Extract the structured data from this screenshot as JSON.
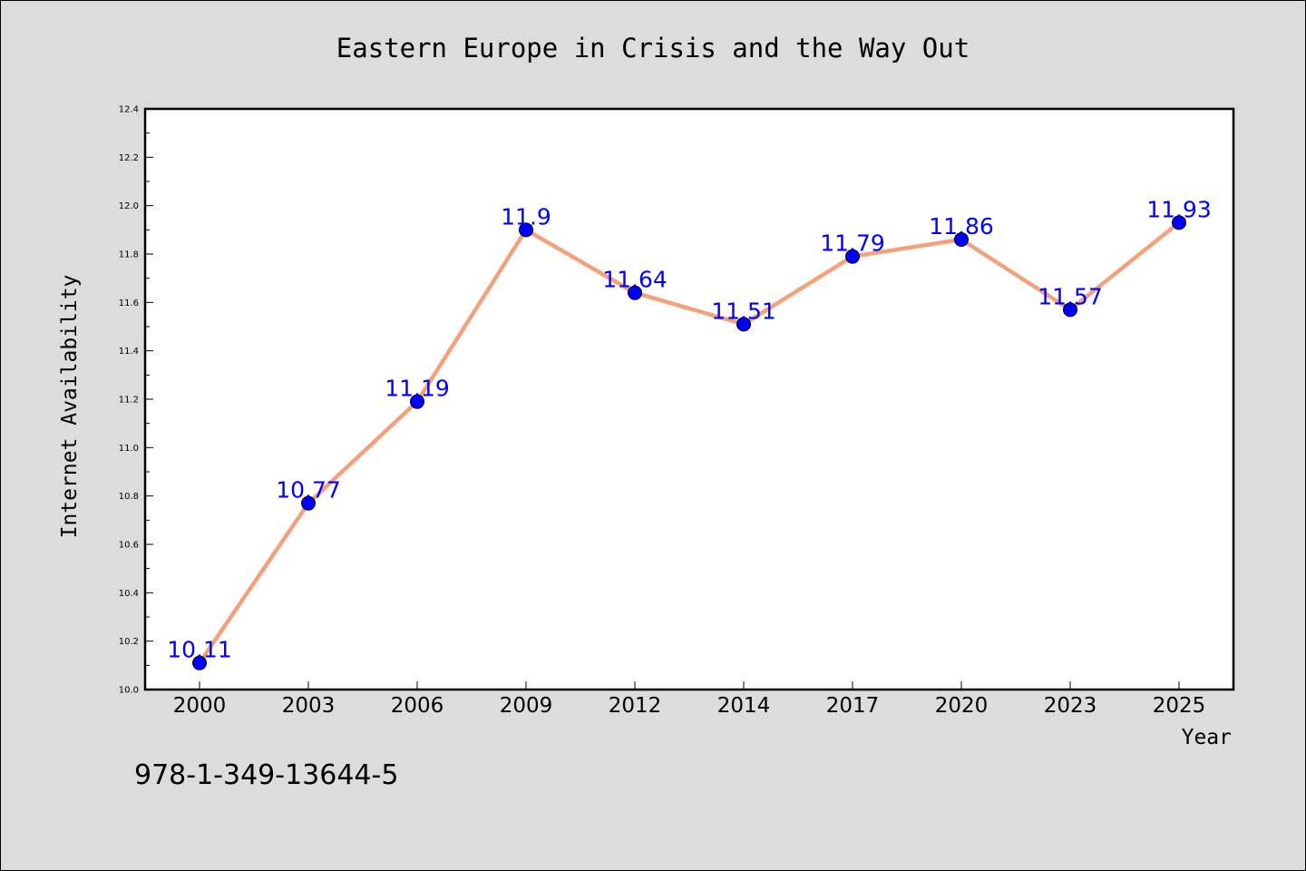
{
  "chart_data": {
    "type": "line",
    "title": "Eastern Europe in Crisis and the Way Out",
    "xlabel": "Year",
    "ylabel": "Internet Availability",
    "categories": [
      "2000",
      "2003",
      "2006",
      "2009",
      "2012",
      "2014",
      "2017",
      "2020",
      "2023",
      "2025"
    ],
    "series": [
      {
        "values": [
          10.11,
          10.77,
          11.19,
          11.9,
          11.64,
          11.51,
          11.79,
          11.86,
          11.57,
          11.93
        ],
        "line_color": "#f4a07c",
        "marker_color": "#0000ff"
      }
    ],
    "data_labels": [
      "10.11",
      "10.77",
      "11.19",
      "11.9",
      "11.64",
      "11.51",
      "11.79",
      "11.86",
      "11.57",
      "11.93"
    ],
    "ylim": [
      10.0,
      12.4
    ],
    "yticks": [
      "10.0",
      "10.2",
      "10.4",
      "10.6",
      "10.8",
      "11.0",
      "11.2",
      "11.4",
      "11.6",
      "11.8",
      "12.0",
      "12.2",
      "12.4"
    ],
    "grid": false,
    "background_color": "#dcdcdc",
    "plot_background_color": "#ffffff"
  },
  "footer": {
    "isbn": "978-1-349-13644-5"
  }
}
